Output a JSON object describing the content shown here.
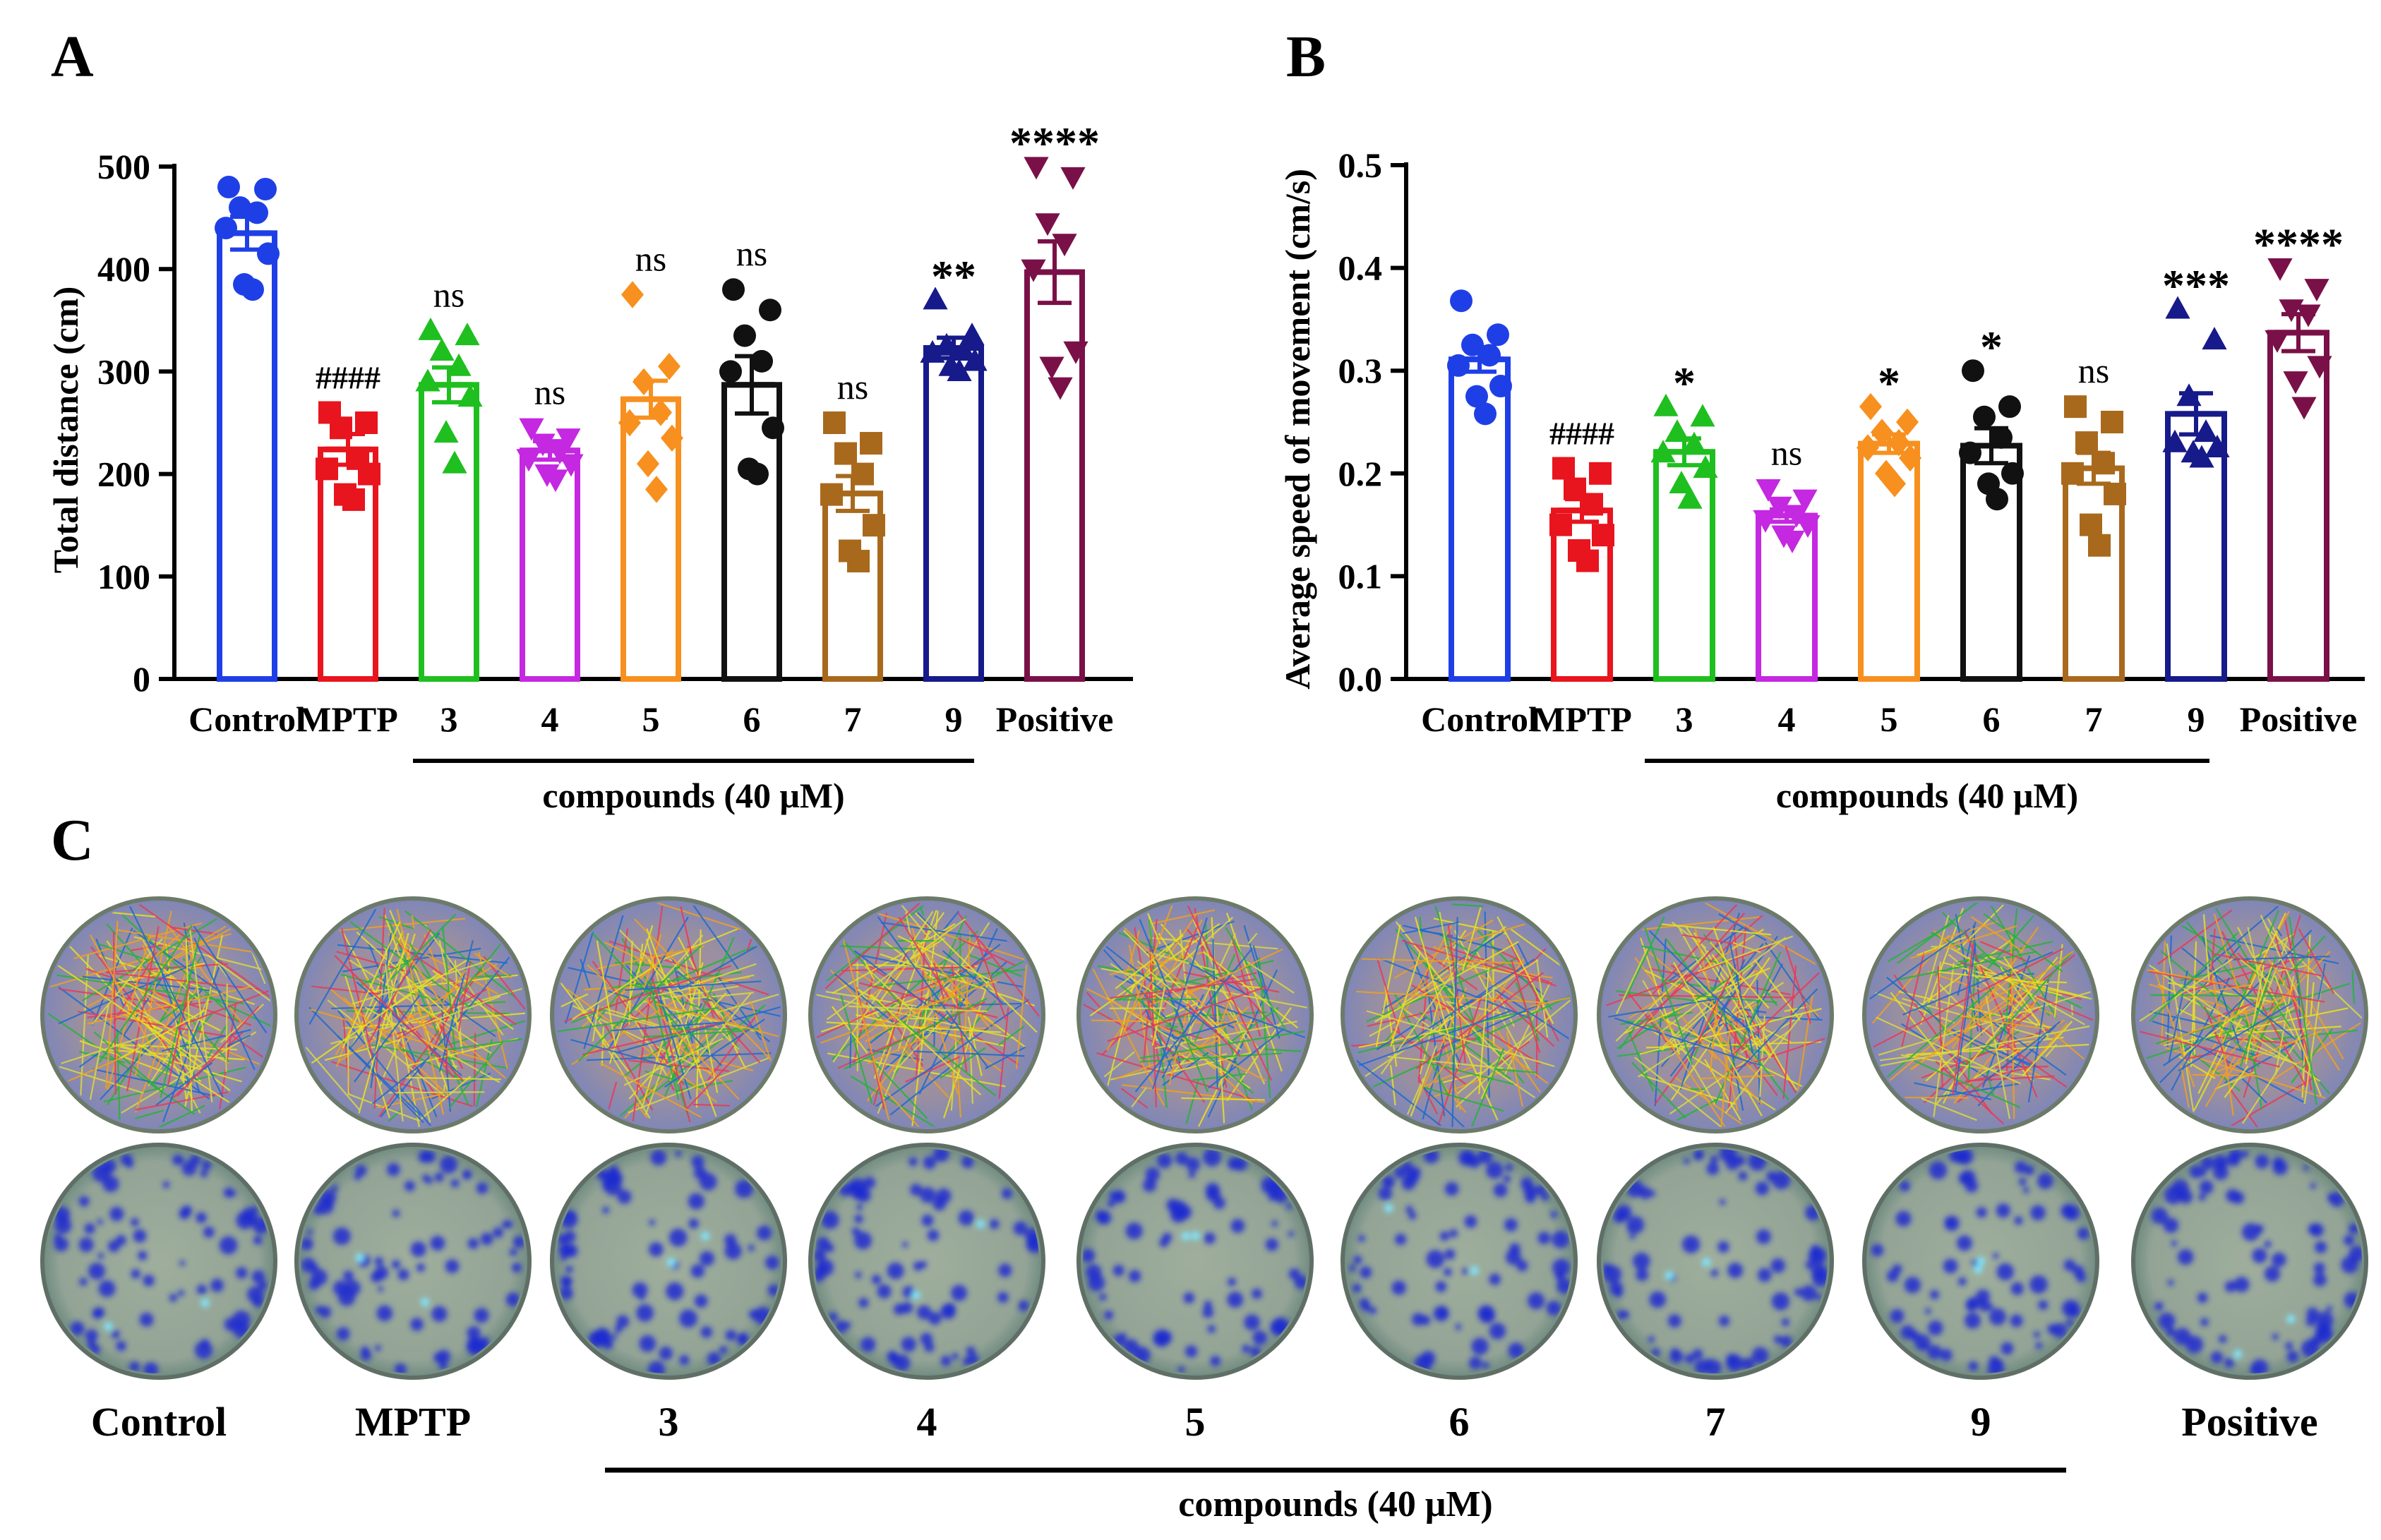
{
  "figure": {
    "panel_labels": [
      "A",
      "B",
      "C"
    ],
    "colors": {
      "Control": "#1f3fe6",
      "MPTP": "#e8141e",
      "3": "#1fbf1f",
      "4": "#c428e0",
      "5": "#f7901e",
      "6": "#111111",
      "7": "#a8691d",
      "9": "#161a8a",
      "Positive": "#7a1048"
    },
    "markers": {
      "Control": "circle",
      "MPTP": "square",
      "3": "triangle-up",
      "4": "triangle-down",
      "5": "diamond",
      "6": "circle",
      "7": "square",
      "9": "triangle-up",
      "Positive": "triangle-down"
    }
  },
  "chart_data": [
    {
      "panel": "A",
      "type": "bar",
      "title": "",
      "xlabel": "",
      "ylabel": "Total distance (cm)",
      "ylim": [
        0,
        500
      ],
      "yticks": [
        0,
        100,
        200,
        300,
        400,
        500
      ],
      "categories": [
        "Control",
        "MPTP",
        "3",
        "4",
        "5",
        "6",
        "7",
        "9",
        "Positive"
      ],
      "values": [
        435,
        224,
        287,
        223,
        273,
        287,
        181,
        323,
        397
      ],
      "sem": [
        16,
        15,
        17,
        9,
        18,
        28,
        17,
        10,
        30
      ],
      "significance": [
        "",
        "####",
        "ns",
        "ns",
        "ns",
        "ns",
        "ns",
        "**",
        "****"
      ],
      "points": [
        [
          480,
          478,
          460,
          455,
          440,
          415,
          385,
          380
        ],
        [
          260,
          250,
          245,
          215,
          205,
          200,
          180,
          175
        ],
        [
          340,
          335,
          320,
          305,
          290,
          275,
          240,
          210
        ],
        [
          245,
          235,
          230,
          222,
          215,
          210,
          200,
          195
        ],
        [
          375,
          305,
          290,
          260,
          250,
          235,
          210,
          185
        ],
        [
          380,
          360,
          335,
          310,
          300,
          245,
          205,
          200
        ],
        [
          250,
          230,
          220,
          200,
          180,
          150,
          125,
          115
        ],
        [
          370,
          335,
          325,
          320,
          318,
          310,
          305,
          300
        ],
        [
          500,
          490,
          445,
          425,
          400,
          320,
          305,
          285
        ]
      ],
      "group_label": "compounds (40 μM)"
    },
    {
      "panel": "B",
      "type": "bar",
      "title": "",
      "xlabel": "",
      "ylabel": "Average speed of movement (cm/s)",
      "ylim": [
        0,
        0.5
      ],
      "yticks": [
        "0.0",
        "0.1",
        "0.2",
        "0.3",
        "0.4",
        "0.5"
      ],
      "categories": [
        "Control",
        "MPTP",
        "3",
        "4",
        "5",
        "6",
        "7",
        "9",
        "Positive"
      ],
      "values": [
        0.311,
        0.164,
        0.221,
        0.159,
        0.229,
        0.227,
        0.205,
        0.258,
        0.337
      ],
      "sem": [
        0.012,
        0.011,
        0.013,
        0.006,
        0.009,
        0.017,
        0.015,
        0.02,
        0.018
      ],
      "significance": [
        "",
        "####",
        "*",
        "ns",
        "*",
        "*",
        "ns",
        "***",
        "****"
      ],
      "points": [
        [
          0.368,
          0.335,
          0.325,
          0.315,
          0.305,
          0.285,
          0.275,
          0.258
        ],
        [
          0.205,
          0.2,
          0.185,
          0.17,
          0.15,
          0.14,
          0.125,
          0.115
        ],
        [
          0.265,
          0.255,
          0.24,
          0.228,
          0.22,
          0.205,
          0.19,
          0.175
        ],
        [
          0.185,
          0.175,
          0.168,
          0.16,
          0.155,
          0.15,
          0.14,
          0.135
        ],
        [
          0.265,
          0.25,
          0.24,
          0.23,
          0.225,
          0.215,
          0.2,
          0.19
        ],
        [
          0.3,
          0.265,
          0.255,
          0.235,
          0.22,
          0.2,
          0.19,
          0.175
        ],
        [
          0.265,
          0.25,
          0.23,
          0.21,
          0.2,
          0.18,
          0.15,
          0.13
        ],
        [
          0.36,
          0.33,
          0.275,
          0.24,
          0.23,
          0.225,
          0.22,
          0.215
        ],
        [
          0.4,
          0.38,
          0.36,
          0.355,
          0.33,
          0.305,
          0.29,
          0.265
        ]
      ],
      "group_label": "compounds (40 μM)"
    }
  ],
  "panel_c": {
    "labels": [
      "Control",
      "MPTP",
      "3",
      "4",
      "5",
      "6",
      "7",
      "9",
      "Positive"
    ],
    "group_label": "compounds (40 μM)",
    "row_descriptions": [
      "trajectory",
      "heatmap"
    ]
  }
}
